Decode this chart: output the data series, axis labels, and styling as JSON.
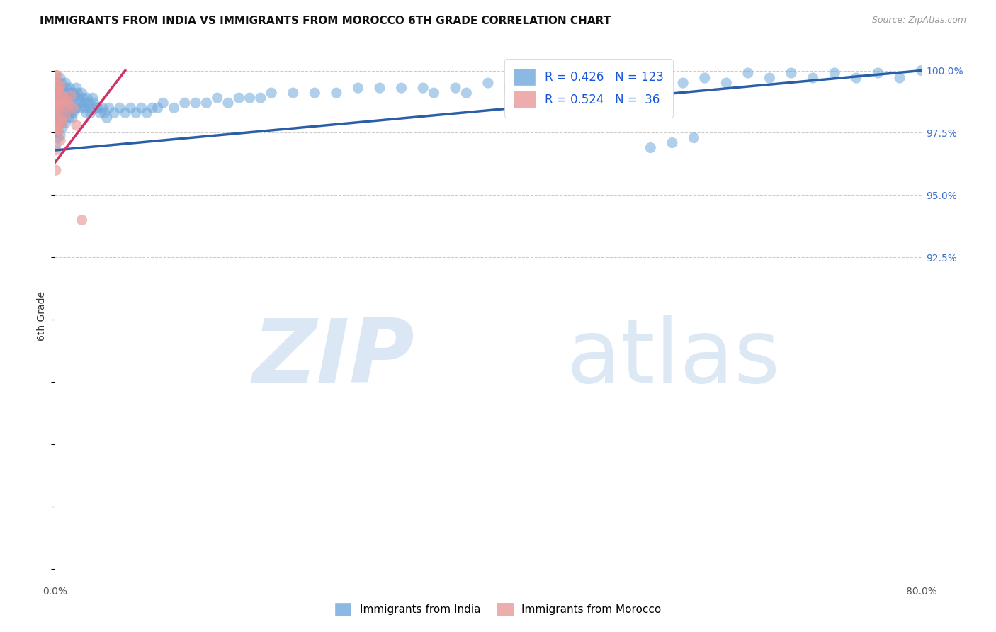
{
  "title": "IMMIGRANTS FROM INDIA VS IMMIGRANTS FROM MOROCCO 6TH GRADE CORRELATION CHART",
  "source": "Source: ZipAtlas.com",
  "ylabel": "6th Grade",
  "xlim": [
    0.0,
    0.8
  ],
  "ylim": [
    0.795,
    1.008
  ],
  "india_color": "#6fa8dc",
  "morocco_color": "#ea9999",
  "india_line_color": "#2a5fa8",
  "morocco_line_color": "#cc3366",
  "india_R": 0.426,
  "india_N": 123,
  "morocco_R": 0.524,
  "morocco_N": 36,
  "legend_text_color": "#1a56db",
  "background_color": "#ffffff",
  "grid_color": "#cccccc",
  "title_fontsize": 11,
  "right_ytick_color": "#3d6ecc",
  "india_x": [
    0.001,
    0.001,
    0.001,
    0.002,
    0.002,
    0.002,
    0.003,
    0.003,
    0.003,
    0.004,
    0.004,
    0.005,
    0.005,
    0.005,
    0.005,
    0.006,
    0.006,
    0.006,
    0.007,
    0.007,
    0.007,
    0.008,
    0.008,
    0.009,
    0.009,
    0.01,
    0.01,
    0.01,
    0.011,
    0.011,
    0.012,
    0.012,
    0.013,
    0.013,
    0.014,
    0.014,
    0.015,
    0.015,
    0.016,
    0.016,
    0.017,
    0.017,
    0.018,
    0.019,
    0.02,
    0.02,
    0.021,
    0.022,
    0.023,
    0.024,
    0.025,
    0.026,
    0.027,
    0.028,
    0.029,
    0.03,
    0.031,
    0.032,
    0.033,
    0.035,
    0.036,
    0.038,
    0.04,
    0.042,
    0.044,
    0.046,
    0.048,
    0.05,
    0.055,
    0.06,
    0.065,
    0.07,
    0.075,
    0.08,
    0.085,
    0.09,
    0.095,
    0.1,
    0.11,
    0.12,
    0.13,
    0.14,
    0.15,
    0.16,
    0.17,
    0.18,
    0.19,
    0.2,
    0.22,
    0.24,
    0.26,
    0.28,
    0.3,
    0.32,
    0.34,
    0.37,
    0.4,
    0.44,
    0.48,
    0.52,
    0.56,
    0.6,
    0.64,
    0.68,
    0.72,
    0.76,
    0.8,
    0.42,
    0.46,
    0.5,
    0.54,
    0.58,
    0.62,
    0.66,
    0.7,
    0.74,
    0.78,
    0.35,
    0.38,
    0.55,
    0.57,
    0.59
  ],
  "india_y": [
    0.99,
    0.98,
    0.97,
    0.995,
    0.985,
    0.975,
    0.993,
    0.983,
    0.973,
    0.991,
    0.981,
    0.997,
    0.99,
    0.982,
    0.974,
    0.995,
    0.987,
    0.979,
    0.993,
    0.985,
    0.977,
    0.991,
    0.983,
    0.989,
    0.981,
    0.995,
    0.987,
    0.979,
    0.993,
    0.985,
    0.991,
    0.983,
    0.989,
    0.981,
    0.993,
    0.985,
    0.991,
    0.983,
    0.989,
    0.981,
    0.991,
    0.983,
    0.989,
    0.985,
    0.993,
    0.985,
    0.991,
    0.989,
    0.987,
    0.985,
    0.991,
    0.989,
    0.987,
    0.985,
    0.983,
    0.989,
    0.987,
    0.985,
    0.983,
    0.989,
    0.987,
    0.985,
    0.985,
    0.983,
    0.985,
    0.983,
    0.981,
    0.985,
    0.983,
    0.985,
    0.983,
    0.985,
    0.983,
    0.985,
    0.983,
    0.985,
    0.985,
    0.987,
    0.985,
    0.987,
    0.987,
    0.987,
    0.989,
    0.987,
    0.989,
    0.989,
    0.989,
    0.991,
    0.991,
    0.991,
    0.991,
    0.993,
    0.993,
    0.993,
    0.993,
    0.993,
    0.995,
    0.995,
    0.995,
    0.997,
    0.997,
    0.997,
    0.999,
    0.999,
    0.999,
    0.999,
    1.0,
    0.993,
    0.993,
    0.995,
    0.993,
    0.995,
    0.995,
    0.997,
    0.997,
    0.997,
    0.997,
    0.991,
    0.991,
    0.969,
    0.971,
    0.973
  ],
  "morocco_x": [
    0.001,
    0.001,
    0.001,
    0.001,
    0.001,
    0.001,
    0.001,
    0.001,
    0.001,
    0.002,
    0.002,
    0.002,
    0.002,
    0.002,
    0.003,
    0.003,
    0.003,
    0.004,
    0.004,
    0.004,
    0.005,
    0.005,
    0.005,
    0.006,
    0.006,
    0.007,
    0.007,
    0.008,
    0.009,
    0.01,
    0.011,
    0.013,
    0.015,
    0.017,
    0.02,
    0.025
  ],
  "morocco_y": [
    0.998,
    0.995,
    0.992,
    0.988,
    0.984,
    0.98,
    0.976,
    0.968,
    0.96,
    0.998,
    0.992,
    0.987,
    0.982,
    0.976,
    0.994,
    0.987,
    0.979,
    0.992,
    0.985,
    0.976,
    0.994,
    0.987,
    0.972,
    0.99,
    0.98,
    0.99,
    0.979,
    0.985,
    0.988,
    0.982,
    0.988,
    0.986,
    0.99,
    0.985,
    0.978,
    0.94
  ],
  "india_line_x0": 0.0,
  "india_line_x1": 0.8,
  "india_line_y0": 0.968,
  "india_line_y1": 1.0,
  "morocco_line_x0": 0.0,
  "morocco_line_x1": 0.065,
  "morocco_line_y0": 0.963,
  "morocco_line_y1": 1.0,
  "right_yticks": [
    0.925,
    0.95,
    0.975,
    1.0
  ],
  "right_yticklabels": [
    "92.5%",
    "95.0%",
    "97.5%",
    "100.0%"
  ],
  "grid_yticks": [
    0.925,
    0.95,
    0.975,
    1.0
  ],
  "xticks": [
    0.0,
    0.1,
    0.2,
    0.3,
    0.4,
    0.5,
    0.6,
    0.7,
    0.8
  ],
  "xtick_labels": [
    "0.0%",
    "",
    "",
    "",
    "",
    "",
    "",
    "",
    "80.0%"
  ]
}
